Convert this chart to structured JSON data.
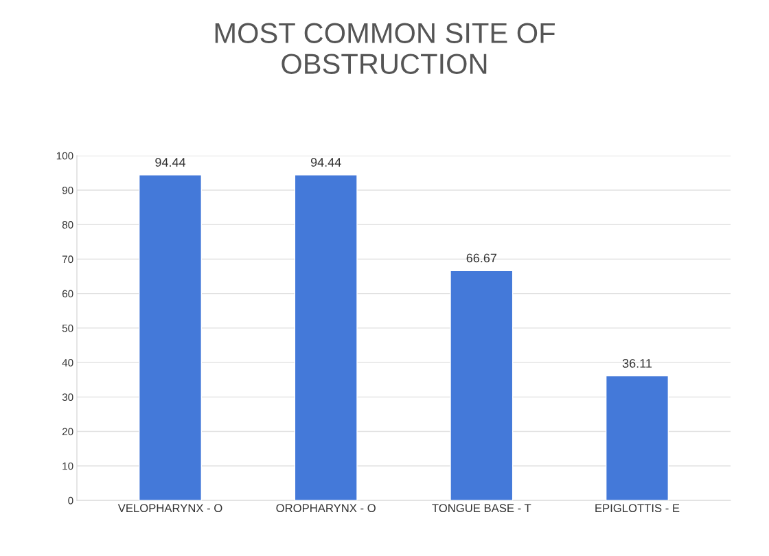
{
  "chart_data": {
    "type": "bar",
    "title": "MOST COMMON SITE OF\nOBSTRUCTION",
    "categories": [
      "VELOPHARYNX - O",
      "OROPHARYNX - O",
      "TONGUE BASE - T",
      "EPIGLOTTIS - E"
    ],
    "values": [
      94.44,
      94.44,
      66.67,
      36.11
    ],
    "color": "#4479d9",
    "ylim": [
      0,
      100
    ],
    "yticks": [
      0,
      10,
      20,
      30,
      40,
      50,
      60,
      70,
      80,
      90,
      100
    ],
    "grid": "y",
    "data_labels": true
  }
}
